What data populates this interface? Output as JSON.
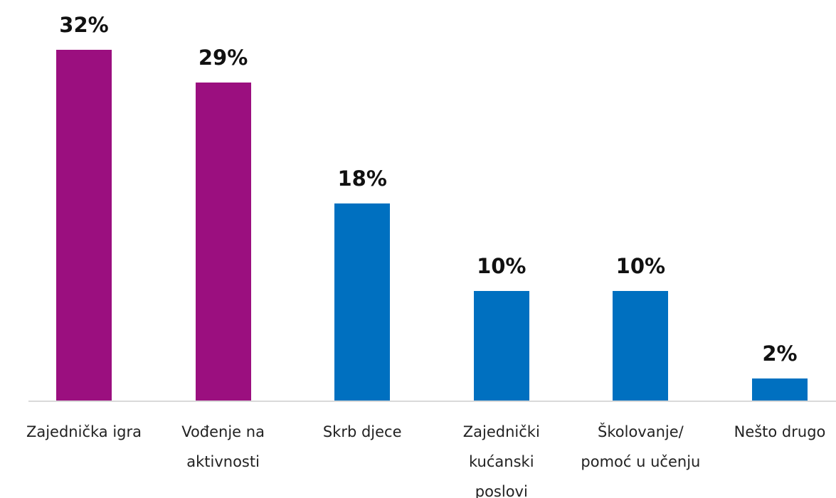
{
  "chart_data": {
    "type": "bar",
    "categories": [
      "Zajednička igra",
      "Vođenje na aktivnosti",
      "Skrb djece",
      "Zajednički kućanski poslovi",
      "Školovanje/ pomoć u učenju",
      "Nešto drugo"
    ],
    "values": [
      32,
      29,
      18,
      10,
      10,
      2
    ],
    "value_labels": [
      "32%",
      "29%",
      "18%",
      "10%",
      "10%",
      "2%"
    ],
    "colors": [
      "#9b0f7f",
      "#9b0f7f",
      "#0070c0",
      "#0070c0",
      "#0070c0",
      "#0070c0"
    ]
  }
}
